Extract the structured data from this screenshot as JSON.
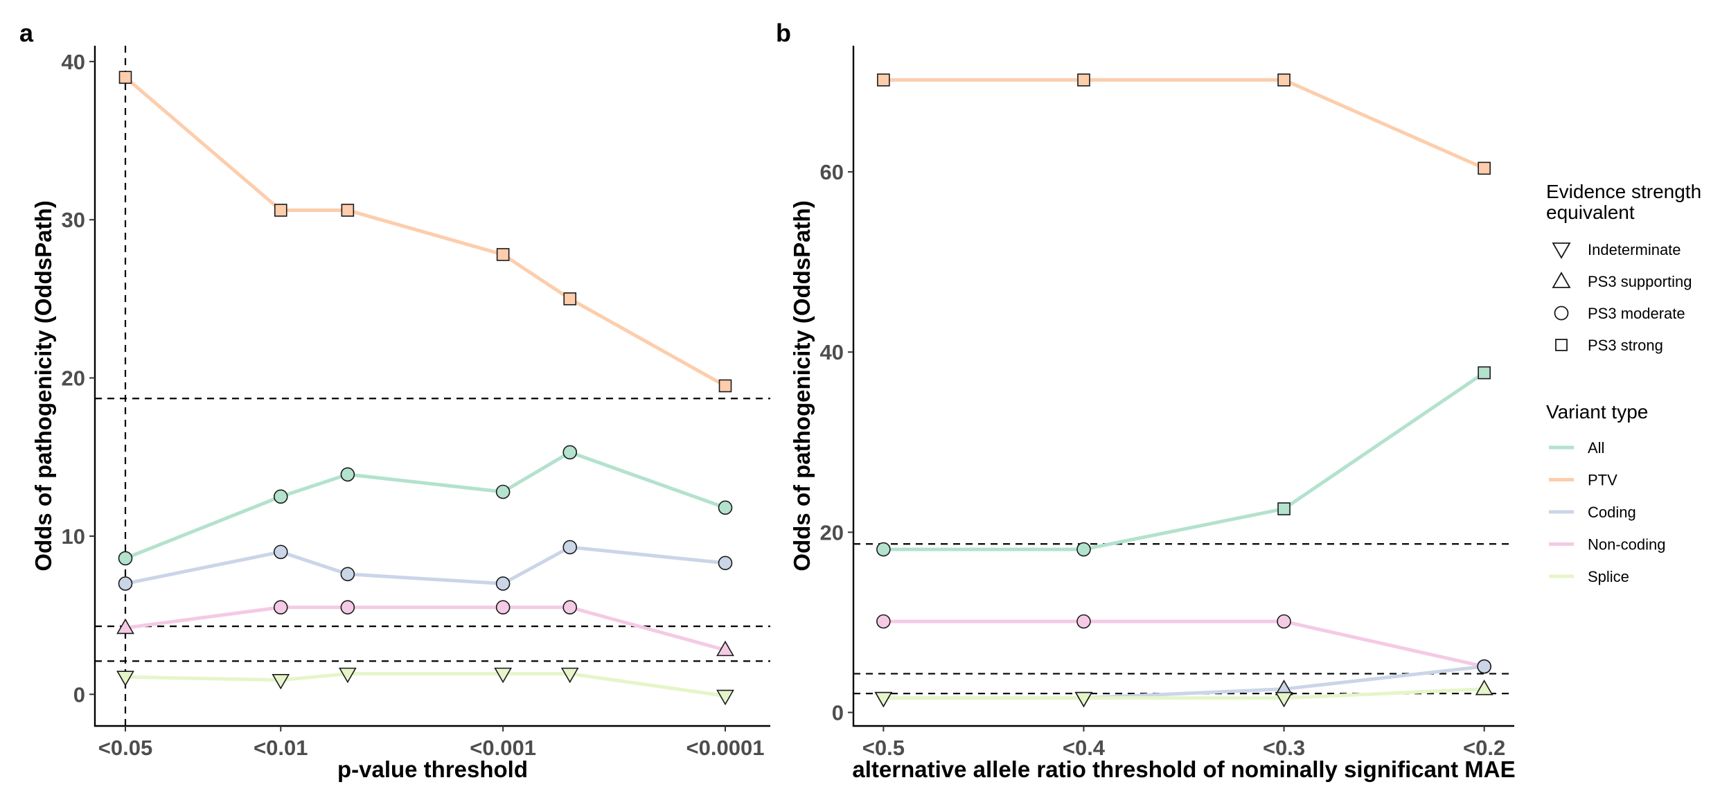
{
  "chart_data": [
    {
      "panel_label": "a",
      "type": "line",
      "xlabel": "p-value threshold",
      "ylabel": "Odds of pathogenicity (OddsPath)",
      "x_scale": "log",
      "x_tick_labels": [
        "<0.05",
        "<0.01",
        "<0.001",
        "<0.0001"
      ],
      "x_tick_values": [
        0.05,
        0.01,
        0.001,
        0.0001
      ],
      "x": [
        0.05,
        0.01,
        0.005,
        0.001,
        0.0005,
        0.0001
      ],
      "ylim": [
        -2,
        41
      ],
      "y_ticks": [
        0,
        10,
        20,
        30,
        40
      ],
      "reference_lines": {
        "horizontal": [
          18.7,
          4.3,
          2.1
        ],
        "vertical": [
          0.05
        ]
      },
      "series": [
        {
          "name": "PTV",
          "values": [
            39,
            30.6,
            30.6,
            27.8,
            25,
            19.5
          ],
          "shapes": [
            "square",
            "square",
            "square",
            "square",
            "square",
            "square"
          ]
        },
        {
          "name": "All",
          "values": [
            8.6,
            12.5,
            13.9,
            12.8,
            15.3,
            11.8
          ],
          "shapes": [
            "circle",
            "circle",
            "circle",
            "circle",
            "circle",
            "circle"
          ]
        },
        {
          "name": "Coding",
          "values": [
            7,
            9,
            7.6,
            7,
            9.3,
            8.3
          ],
          "shapes": [
            "circle",
            "circle",
            "circle",
            "circle",
            "circle",
            "circle"
          ]
        },
        {
          "name": "Non-coding",
          "values": [
            4.2,
            5.5,
            5.5,
            5.5,
            5.5,
            2.8
          ],
          "shapes": [
            "triangle-up",
            "circle",
            "circle",
            "circle",
            "circle",
            "triangle-up"
          ]
        },
        {
          "name": "Splice",
          "values": [
            1.1,
            0.9,
            1.3,
            1.3,
            1.3,
            -0.1
          ],
          "shapes": [
            "triangle-down",
            "triangle-down",
            "triangle-down",
            "triangle-down",
            "triangle-down",
            "triangle-down"
          ]
        }
      ]
    },
    {
      "panel_label": "b",
      "type": "line",
      "xlabel": "alternative allele ratio threshold of nominally significant MAE",
      "ylabel": "Odds of pathogenicity (OddsPath)",
      "x_tick_labels": [
        "<0.5",
        "<0.4",
        "<0.3",
        "<0.2"
      ],
      "x_tick_values": [
        0.5,
        0.4,
        0.3,
        0.2
      ],
      "x": [
        0.5,
        0.4,
        0.3,
        0.2
      ],
      "xlim": [
        0.515,
        0.185
      ],
      "ylim": [
        -1.5,
        74
      ],
      "y_ticks": [
        0,
        20,
        40,
        60
      ],
      "reference_lines": {
        "horizontal": [
          18.7,
          4.3,
          2.1
        ],
        "vertical": []
      },
      "series": [
        {
          "name": "PTV",
          "values": [
            70.2,
            70.2,
            70.2,
            60.4
          ],
          "shapes": [
            "square",
            "square",
            "square",
            "square"
          ]
        },
        {
          "name": "All",
          "values": [
            18.1,
            18.1,
            22.6,
            37.7
          ],
          "shapes": [
            "circle",
            "circle",
            "square",
            "square"
          ]
        },
        {
          "name": "Non-coding",
          "values": [
            10.1,
            10.1,
            10.1,
            5.1
          ],
          "shapes": [
            "circle",
            "circle",
            "circle",
            "circle"
          ]
        },
        {
          "name": "Coding",
          "values": [
            1.6,
            1.6,
            2.6,
            5.1
          ],
          "shapes": [
            "triangle-down",
            "triangle-down",
            "triangle-up",
            "circle"
          ]
        },
        {
          "name": "Splice",
          "values": [
            1.6,
            1.6,
            1.6,
            2.6
          ],
          "shapes": [
            "triangle-down",
            "triangle-down",
            "triangle-down",
            "triangle-up"
          ]
        }
      ]
    }
  ],
  "legend": {
    "placement": "right",
    "shape_title_line1": "Evidence strength",
    "shape_title_line2": "equivalent",
    "shapes": [
      {
        "label": "Indeterminate",
        "shape": "triangle-down"
      },
      {
        "label": "PS3 supporting",
        "shape": "triangle-up"
      },
      {
        "label": "PS3 moderate",
        "shape": "circle"
      },
      {
        "label": "PS3 strong",
        "shape": "square"
      }
    ],
    "color_title": "Variant type",
    "colors": [
      {
        "label": "All",
        "color": "#b3e2cd"
      },
      {
        "label": "PTV",
        "color": "#fdcdac"
      },
      {
        "label": "Coding",
        "color": "#cbd5e8"
      },
      {
        "label": "Non-coding",
        "color": "#f4cae4"
      },
      {
        "label": "Splice",
        "color": "#e6f5c9"
      }
    ]
  },
  "colors": {
    "All": "#b3e2cd",
    "PTV": "#fdcdac",
    "Coding": "#cbd5e8",
    "Non-coding": "#f4cae4",
    "Splice": "#e6f5c9"
  }
}
